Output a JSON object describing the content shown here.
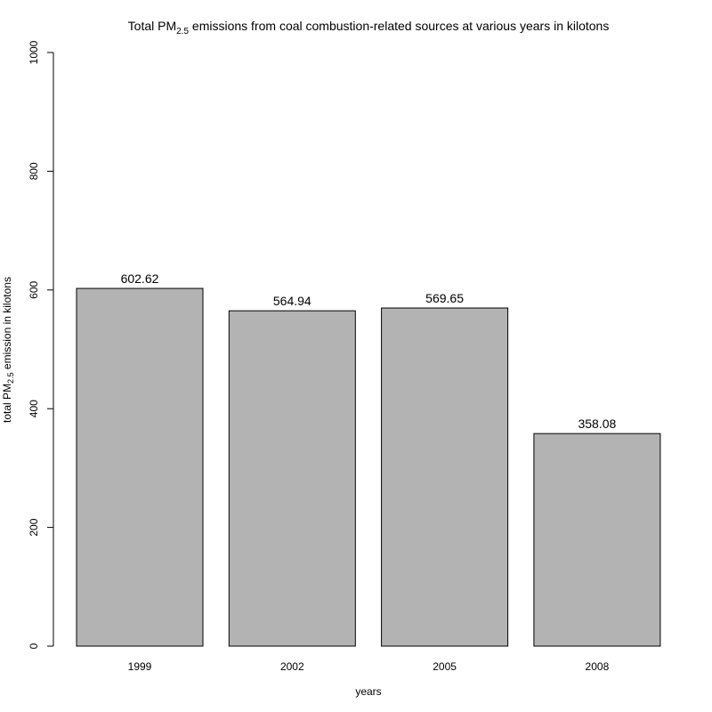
{
  "chart_data": {
    "type": "bar",
    "title_parts": [
      "Total PM",
      "2.5",
      " emissions from coal combustion-related sources at various years in kilotons"
    ],
    "xlabel": "years",
    "ylabel_parts": [
      "total PM",
      "2.5",
      " emission in kilotons"
    ],
    "categories": [
      "1999",
      "2002",
      "2005",
      "2008"
    ],
    "values": [
      602.62,
      564.94,
      569.65,
      358.08
    ],
    "value_labels": [
      "602.62",
      "564.94",
      "569.65",
      "358.08"
    ],
    "ylim": [
      0,
      1000
    ],
    "yticks": [
      0,
      200,
      400,
      600,
      800,
      1000
    ],
    "bar_color": "#b3b3b3",
    "grid": false,
    "legend": false
  }
}
